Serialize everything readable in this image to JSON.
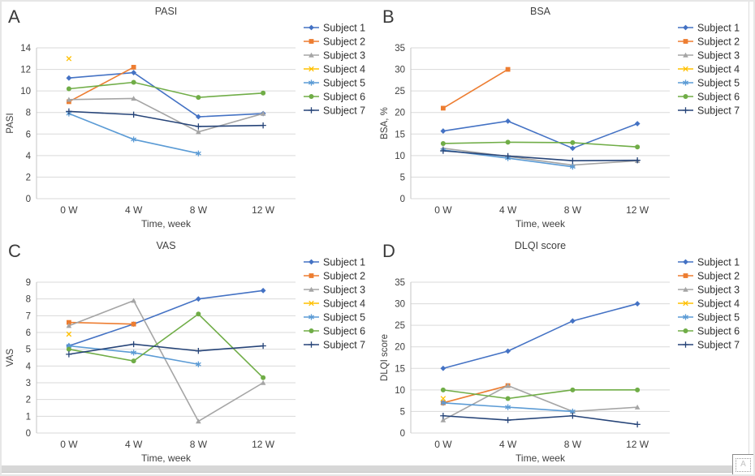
{
  "theme": {
    "background": "#ffffff",
    "frame_color": "#e6e6e6",
    "grid_color": "#dadada",
    "axis_color": "#c6c6c6",
    "text_color": "#404040",
    "panel_letter_color": "#3a3a3a",
    "scrollbar_color": "#d7d7d7"
  },
  "subjects": [
    {
      "name": "Subject 1",
      "color": "#4472C4",
      "marker": "diamond"
    },
    {
      "name": "Subject 2",
      "color": "#ED7D31",
      "marker": "square"
    },
    {
      "name": "Subject 3",
      "color": "#A5A5A5",
      "marker": "triangle"
    },
    {
      "name": "Subject 4",
      "color": "#FFC000",
      "marker": "x"
    },
    {
      "name": "Subject 5",
      "color": "#5B9BD5",
      "marker": "asterisk"
    },
    {
      "name": "Subject 6",
      "color": "#70AD47",
      "marker": "circle"
    },
    {
      "name": "Subject 7",
      "color": "#264478",
      "marker": "plus"
    }
  ],
  "chart_data": [
    {
      "panel_label": "A",
      "type": "line",
      "title": "PASI",
      "xlabel": "Time, week",
      "ylabel": "PASI",
      "categories": [
        "0 W",
        "4 W",
        "8 W",
        "12 W"
      ],
      "ylim": [
        0,
        14
      ],
      "yticks": [
        0,
        2,
        4,
        6,
        8,
        10,
        12,
        14
      ],
      "grid": true,
      "legend_position": "right",
      "series": [
        {
          "name": "Subject 1",
          "values": [
            11.2,
            11.7,
            7.6,
            7.9
          ]
        },
        {
          "name": "Subject 2",
          "values": [
            9.0,
            12.2,
            null,
            null
          ]
        },
        {
          "name": "Subject 3",
          "values": [
            9.2,
            9.3,
            6.2,
            7.9
          ]
        },
        {
          "name": "Subject 4",
          "values": [
            13.0,
            null,
            null,
            null
          ]
        },
        {
          "name": "Subject 5",
          "values": [
            7.9,
            5.5,
            4.2,
            null
          ]
        },
        {
          "name": "Subject 6",
          "values": [
            10.2,
            10.8,
            9.4,
            9.8
          ]
        },
        {
          "name": "Subject 7",
          "values": [
            8.1,
            7.8,
            6.7,
            6.8
          ]
        }
      ]
    },
    {
      "panel_label": "B",
      "type": "line",
      "title": "BSA",
      "xlabel": "Time, week",
      "ylabel": "BSA, %",
      "categories": [
        "0 W",
        "4 W",
        "8 W",
        "12 W"
      ],
      "ylim": [
        0,
        35
      ],
      "yticks": [
        0,
        5,
        10,
        15,
        20,
        25,
        30,
        35
      ],
      "grid": true,
      "legend_position": "right",
      "series": [
        {
          "name": "Subject 1",
          "values": [
            15.7,
            18.0,
            11.7,
            17.4
          ]
        },
        {
          "name": "Subject 2",
          "values": [
            21.0,
            30.0,
            null,
            null
          ]
        },
        {
          "name": "Subject 3",
          "values": [
            11.7,
            9.8,
            7.8,
            8.8
          ]
        },
        {
          "name": "Subject 4",
          "values": [
            null,
            null,
            null,
            null
          ]
        },
        {
          "name": "Subject 5",
          "values": [
            11.3,
            9.4,
            7.4,
            null
          ]
        },
        {
          "name": "Subject 6",
          "values": [
            12.8,
            13.1,
            13.0,
            12.0
          ]
        },
        {
          "name": "Subject 7",
          "values": [
            11.1,
            9.9,
            8.8,
            8.9
          ]
        }
      ]
    },
    {
      "panel_label": "C",
      "type": "line",
      "title": "VAS",
      "xlabel": "Time, week",
      "ylabel": "VAS",
      "categories": [
        "0 W",
        "4 W",
        "8 W",
        "12 W"
      ],
      "ylim": [
        0,
        9
      ],
      "yticks": [
        0,
        1,
        2,
        3,
        4,
        5,
        6,
        7,
        8,
        9
      ],
      "grid": true,
      "legend_position": "right",
      "series": [
        {
          "name": "Subject 1",
          "values": [
            5.2,
            6.5,
            8.0,
            8.5
          ]
        },
        {
          "name": "Subject 2",
          "values": [
            6.6,
            6.5,
            null,
            null
          ]
        },
        {
          "name": "Subject 3",
          "values": [
            6.4,
            7.9,
            0.7,
            3.0
          ]
        },
        {
          "name": "Subject 4",
          "values": [
            5.9,
            null,
            null,
            null
          ]
        },
        {
          "name": "Subject 5",
          "values": [
            5.2,
            4.8,
            4.1,
            null
          ]
        },
        {
          "name": "Subject 6",
          "values": [
            5.0,
            4.3,
            7.1,
            3.3
          ]
        },
        {
          "name": "Subject 7",
          "values": [
            4.7,
            5.3,
            4.9,
            5.2
          ]
        }
      ]
    },
    {
      "panel_label": "D",
      "type": "line",
      "title": "DLQI score",
      "xlabel": "Time, week",
      "ylabel": "DLQI score",
      "categories": [
        "0 W",
        "4 W",
        "8 W",
        "12 W"
      ],
      "ylim": [
        0,
        35
      ],
      "yticks": [
        0,
        5,
        10,
        15,
        20,
        25,
        30,
        35
      ],
      "grid": true,
      "legend_position": "right",
      "series": [
        {
          "name": "Subject 1",
          "values": [
            15,
            19,
            26,
            30
          ]
        },
        {
          "name": "Subject 2",
          "values": [
            7,
            11,
            null,
            null
          ]
        },
        {
          "name": "Subject 3",
          "values": [
            3,
            11,
            5,
            6
          ]
        },
        {
          "name": "Subject 4",
          "values": [
            8,
            null,
            null,
            null
          ]
        },
        {
          "name": "Subject 5",
          "values": [
            7,
            6,
            5,
            null
          ]
        },
        {
          "name": "Subject 6",
          "values": [
            10,
            8,
            10,
            10
          ]
        },
        {
          "name": "Subject 7",
          "values": [
            4,
            3,
            4,
            2
          ]
        }
      ]
    }
  ],
  "corner_tool": {
    "glyph": "A"
  }
}
